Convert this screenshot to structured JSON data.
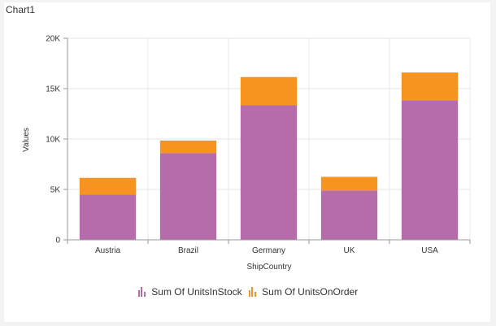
{
  "chart_title": "Chart1",
  "colors": {
    "UnitsInStock": "#b66cab",
    "UnitsOnOrder": "#f7941f"
  },
  "chart_data": {
    "type": "bar",
    "stacked": true,
    "categories": [
      "Austria",
      "Brazil",
      "Germany",
      "UK",
      "USA"
    ],
    "series": [
      {
        "name": "Sum Of UnitsInStock",
        "values": [
          4500,
          8600,
          13350,
          4900,
          13850
        ]
      },
      {
        "name": "Sum Of UnitsOnOrder",
        "values": [
          1650,
          1250,
          2800,
          1350,
          2750
        ]
      }
    ],
    "xlabel": "ShipCountry",
    "ylabel": "Values",
    "ylim": [
      0,
      20000
    ],
    "yticks": [
      0,
      5000,
      10000,
      15000,
      20000
    ],
    "ytick_labels": [
      "0",
      "5K",
      "10K",
      "15K",
      "20K"
    ],
    "grid": true,
    "legend_position": "bottom"
  }
}
